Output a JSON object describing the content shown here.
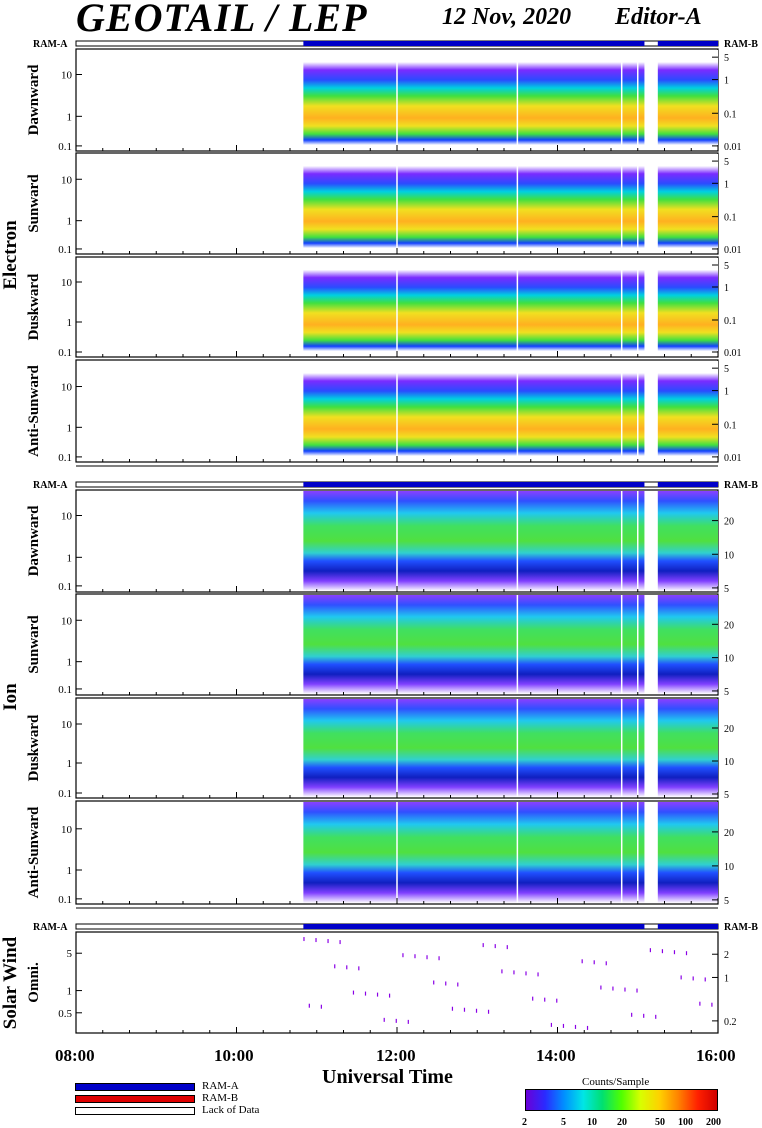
{
  "header": {
    "title": "GEOTAIL / LEP",
    "date": "12 Nov, 2020",
    "editor": "Editor-A"
  },
  "ram": {
    "a": "RAM-A",
    "b": "RAM-B",
    "lack": "Lack of Data"
  },
  "groups": {
    "electron": "Electron",
    "ion": "Ion",
    "solar_wind": "Solar Wind"
  },
  "xaxis": {
    "title": "Universal Time",
    "ticks": [
      "08:00",
      "10:00",
      "12:00",
      "14:00",
      "16:00"
    ]
  },
  "colorbar": {
    "title": "Counts/Sample",
    "ticks": [
      "2",
      "5",
      "10",
      "20",
      "50",
      "100",
      "200"
    ]
  },
  "colors": {
    "ram_a": "#0000c8",
    "ram_b": "#e00000",
    "lack": "#ffffff"
  },
  "chart_data": {
    "type": "heatmap",
    "x_range": [
      "08:00",
      "16:00"
    ],
    "data_start": "10:50",
    "data_gaps": [
      [
        "15:05",
        "15:15"
      ]
    ],
    "panels": [
      {
        "group": "Electron",
        "label": "Dawnward",
        "left_ticks": [
          "10",
          "1",
          "0.1"
        ],
        "right_ticks": [
          "5",
          "1",
          "0.1",
          "0.01"
        ]
      },
      {
        "group": "Electron",
        "label": "Sunward",
        "left_ticks": [
          "10",
          "1",
          "0.1"
        ],
        "right_ticks": [
          "5",
          "1",
          "0.1",
          "0.01"
        ]
      },
      {
        "group": "Electron",
        "label": "Duskward",
        "left_ticks": [
          "10",
          "1",
          "0.1"
        ],
        "right_ticks": [
          "5",
          "1",
          "0.1",
          "0.01"
        ]
      },
      {
        "group": "Electron",
        "label": "Anti-Sunward",
        "left_ticks": [
          "10",
          "1",
          "0.1"
        ],
        "right_ticks": [
          "5",
          "1",
          "0.1",
          "0.01"
        ]
      },
      {
        "group": "Ion",
        "label": "Dawnward",
        "left_ticks": [
          "10",
          "1",
          "0.1"
        ],
        "right_ticks": [
          "20",
          "10",
          "5"
        ]
      },
      {
        "group": "Ion",
        "label": "Sunward",
        "left_ticks": [
          "10",
          "1",
          "0.1"
        ],
        "right_ticks": [
          "20",
          "10",
          "5"
        ]
      },
      {
        "group": "Ion",
        "label": "Duskward",
        "left_ticks": [
          "10",
          "1",
          "0.1"
        ],
        "right_ticks": [
          "20",
          "10",
          "5"
        ]
      },
      {
        "group": "Ion",
        "label": "Anti-Sunward",
        "left_ticks": [
          "10",
          "1",
          "0.1"
        ],
        "right_ticks": [
          "20",
          "10",
          "5"
        ]
      },
      {
        "group": "Solar Wind",
        "label": "Omni.",
        "left_ticks": [
          "5",
          "1",
          "0.5"
        ],
        "right_ticks": [
          "2",
          "1",
          "0.2"
        ]
      }
    ]
  }
}
